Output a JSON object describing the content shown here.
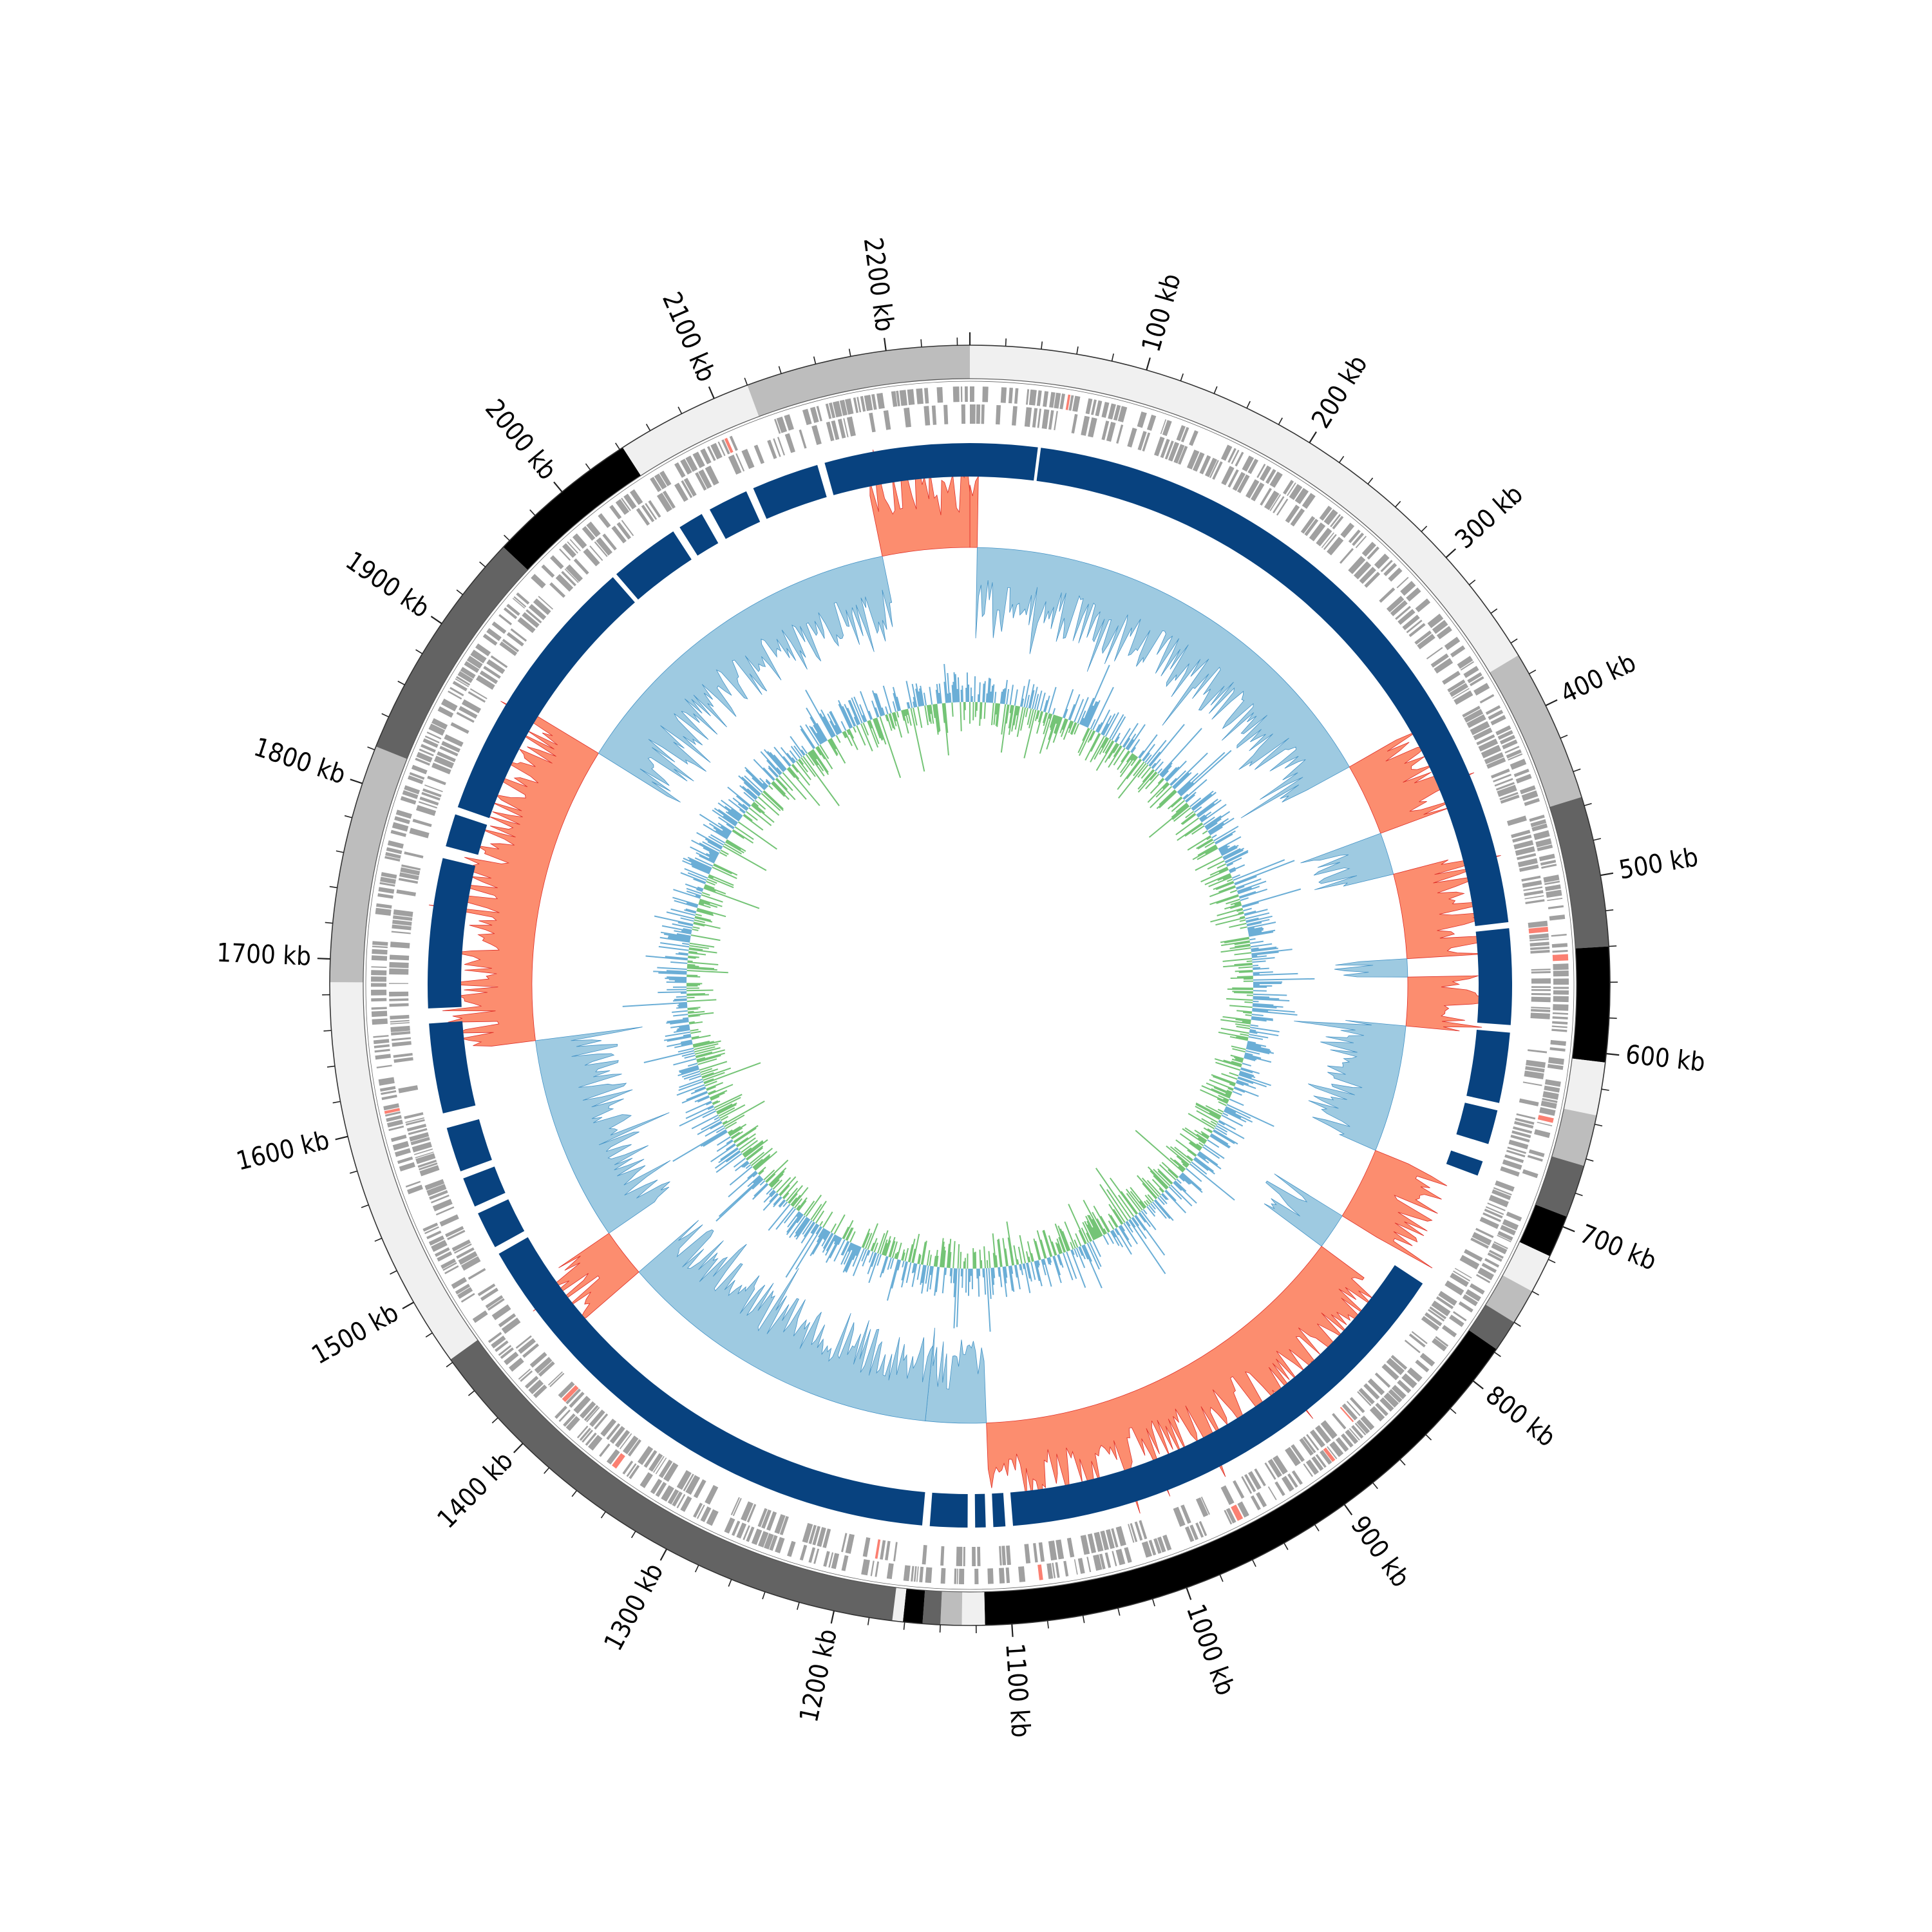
{
  "chart_data": {
    "type": "circular-genome",
    "genome_length_kb": 2247,
    "tick_labels": [
      {
        "pos": 100,
        "text": "100 kb"
      },
      {
        "pos": 200,
        "text": "200 kb"
      },
      {
        "pos": 300,
        "text": "300 kb"
      },
      {
        "pos": 400,
        "text": "400 kb"
      },
      {
        "pos": 500,
        "text": "500 kb"
      },
      {
        "pos": 600,
        "text": "600 kb"
      },
      {
        "pos": 700,
        "text": "700 kb"
      },
      {
        "pos": 800,
        "text": "800 kb"
      },
      {
        "pos": 900,
        "text": "900 kb"
      },
      {
        "pos": 1000,
        "text": "1000 kb"
      },
      {
        "pos": 1100,
        "text": "1100 kb"
      },
      {
        "pos": 1200,
        "text": "1200 kb"
      },
      {
        "pos": 1300,
        "text": "1300 kb"
      },
      {
        "pos": 1400,
        "text": "1400 kb"
      },
      {
        "pos": 1500,
        "text": "1500 kb"
      },
      {
        "pos": 1600,
        "text": "1600 kb"
      },
      {
        "pos": 1700,
        "text": "1700 kb"
      },
      {
        "pos": 1800,
        "text": "1800 kb"
      },
      {
        "pos": 1900,
        "text": "1900 kb"
      },
      {
        "pos": 2000,
        "text": "2000 kb"
      },
      {
        "pos": 2100,
        "text": "2100 kb"
      },
      {
        "pos": 2200,
        "text": "2200 kb"
      }
    ],
    "minor_tick_step_kb": 20,
    "contig_blocks": [
      {
        "start": 0,
        "end": 368,
        "color": "#f0f0f0"
      },
      {
        "start": 368,
        "end": 455,
        "color": "#bdbdbd"
      },
      {
        "start": 455,
        "end": 540,
        "color": "#636363"
      },
      {
        "start": 540,
        "end": 605,
        "color": "#000000"
      },
      {
        "start": 605,
        "end": 635,
        "color": "#f0f0f0"
      },
      {
        "start": 635,
        "end": 664,
        "color": "#bdbdbd"
      },
      {
        "start": 664,
        "end": 694,
        "color": "#636363"
      },
      {
        "start": 694,
        "end": 718,
        "color": "#000000"
      },
      {
        "start": 718,
        "end": 740,
        "color": "#f0f0f0"
      },
      {
        "start": 740,
        "end": 760,
        "color": "#bdbdbd"
      },
      {
        "start": 760,
        "end": 778,
        "color": "#636363"
      },
      {
        "start": 778,
        "end": 1115,
        "color": "#000000"
      },
      {
        "start": 1115,
        "end": 1128,
        "color": "#f0f0f0"
      },
      {
        "start": 1128,
        "end": 1140,
        "color": "#bdbdbd"
      },
      {
        "start": 1140,
        "end": 1150,
        "color": "#636363"
      },
      {
        "start": 1150,
        "end": 1161,
        "color": "#000000"
      },
      {
        "start": 1161,
        "end": 1167,
        "color": "#f0f0f0"
      },
      {
        "start": 1167,
        "end": 1462,
        "color": "#636363"
      },
      {
        "start": 1462,
        "end": 1687,
        "color": "#f0f0f0"
      },
      {
        "start": 1687,
        "end": 1822,
        "color": "#bdbdbd"
      },
      {
        "start": 1822,
        "end": 1955,
        "color": "#636363"
      },
      {
        "start": 1955,
        "end": 2042,
        "color": "#000000"
      },
      {
        "start": 2042,
        "end": 2120,
        "color": "#f0f0f0"
      },
      {
        "start": 2120,
        "end": 2247,
        "color": "#bdbdbd"
      }
    ],
    "synteny_blocks": [
      {
        "start": 0,
        "end": 45
      },
      {
        "start": 47,
        "end": 520
      },
      {
        "start": 524,
        "end": 588
      },
      {
        "start": 593,
        "end": 640
      },
      {
        "start": 645,
        "end": 668
      },
      {
        "start": 680,
        "end": 690
      },
      {
        "start": 770,
        "end": 1095
      },
      {
        "start": 1100,
        "end": 1108
      },
      {
        "start": 1113,
        "end": 1120
      },
      {
        "start": 1125,
        "end": 1150
      },
      {
        "start": 1155,
        "end": 1500
      },
      {
        "start": 1505,
        "end": 1530
      },
      {
        "start": 1535,
        "end": 1555
      },
      {
        "start": 1560,
        "end": 1590
      },
      {
        "start": 1600,
        "end": 1660
      },
      {
        "start": 1670,
        "end": 1770
      },
      {
        "start": 1778,
        "end": 1800
      },
      {
        "start": 1805,
        "end": 1990
      },
      {
        "start": 1993,
        "end": 2040
      },
      {
        "start": 2045,
        "end": 2062
      },
      {
        "start": 2068,
        "end": 2095
      },
      {
        "start": 2100,
        "end": 2145
      },
      {
        "start": 2150,
        "end": 2247
      }
    ],
    "gc_skew_regions": [
      {
        "start": 0,
        "end": 6,
        "sign": "+"
      },
      {
        "start": 6,
        "end": 375,
        "sign": "-"
      },
      {
        "start": 375,
        "end": 435,
        "sign": "+"
      },
      {
        "start": 435,
        "end": 470,
        "sign": "-"
      },
      {
        "start": 470,
        "end": 540,
        "sign": "+"
      },
      {
        "start": 540,
        "end": 555,
        "sign": "-"
      },
      {
        "start": 555,
        "end": 595,
        "sign": "+"
      },
      {
        "start": 595,
        "end": 700,
        "sign": "-"
      },
      {
        "start": 700,
        "end": 760,
        "sign": "+"
      },
      {
        "start": 760,
        "end": 790,
        "sign": "-"
      },
      {
        "start": 790,
        "end": 1110,
        "sign": "+"
      },
      {
        "start": 1110,
        "end": 1160,
        "sign": "-"
      },
      {
        "start": 1160,
        "end": 1430,
        "sign": "-"
      },
      {
        "start": 1430,
        "end": 1470,
        "sign": "+"
      },
      {
        "start": 1470,
        "end": 1640,
        "sign": "-"
      },
      {
        "start": 1640,
        "end": 1885,
        "sign": "+"
      },
      {
        "start": 1885,
        "end": 2175,
        "sign": "-"
      },
      {
        "start": 2175,
        "end": 2247,
        "sign": "+"
      }
    ],
    "colors": {
      "contig_light": "#f0f0f0",
      "contig_mid": "#bdbdbd",
      "contig_dark": "#636363",
      "contig_black": "#000000",
      "genes": "#a0a0a0",
      "genes_rna": "#fb8072",
      "synteny": "#08427f",
      "skew_positive": "#fc8d6f",
      "skew_negative": "#9ecae1",
      "skew_line_positive": "#de2d26",
      "skew_line_negative": "#4292c6",
      "gc_above": "#6baed6",
      "gc_below": "#74c476"
    }
  }
}
